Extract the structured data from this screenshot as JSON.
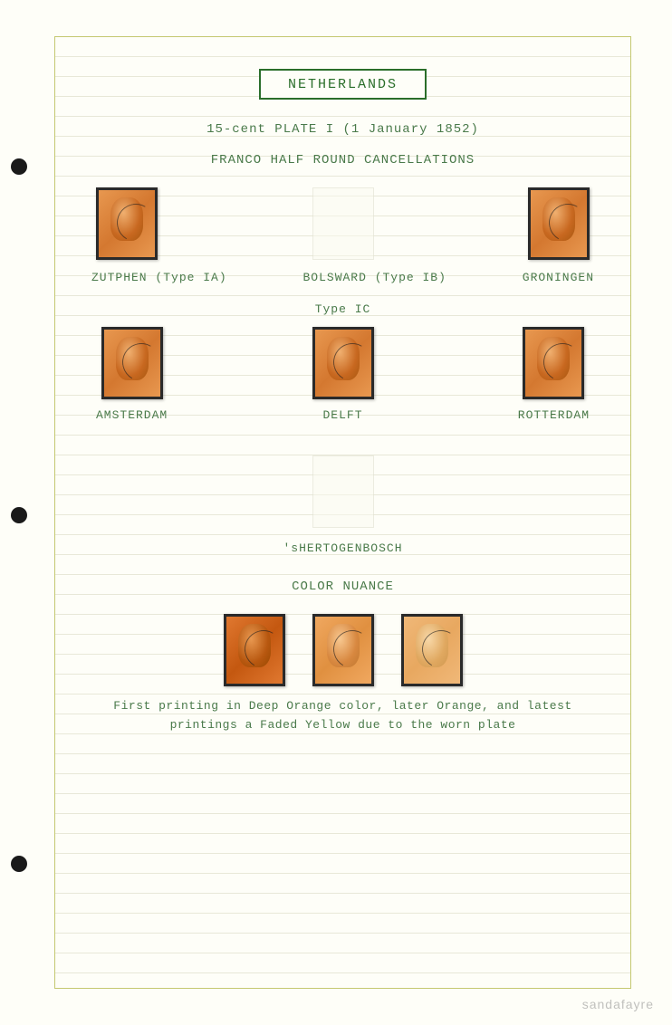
{
  "header": {
    "country": "NETHERLANDS",
    "plate_info": "15-cent PLATE I (1 January 1852)",
    "cancellation_type": "FRANCO HALF ROUND CANCELLATIONS"
  },
  "row1": {
    "stamp1_label": "ZUTPHEN (Type IA)",
    "stamp2_label": "BOLSWARD  (Type IB)",
    "stamp3_label": "GRONINGEN"
  },
  "type_1c": {
    "label": "Type IC",
    "stamp1_label": "AMSTERDAM",
    "stamp2_label": "DELFT",
    "stamp3_label": "ROTTERDAM"
  },
  "row3": {
    "stamp1_label": "'sHERTOGENBOSCH"
  },
  "color_section": {
    "heading": "COLOR NUANCE",
    "description_line1": "First printing in Deep Orange color, later Orange, and latest",
    "description_line2": "printings a Faded Yellow due to the worn plate"
  },
  "watermark": "sandafayre"
}
